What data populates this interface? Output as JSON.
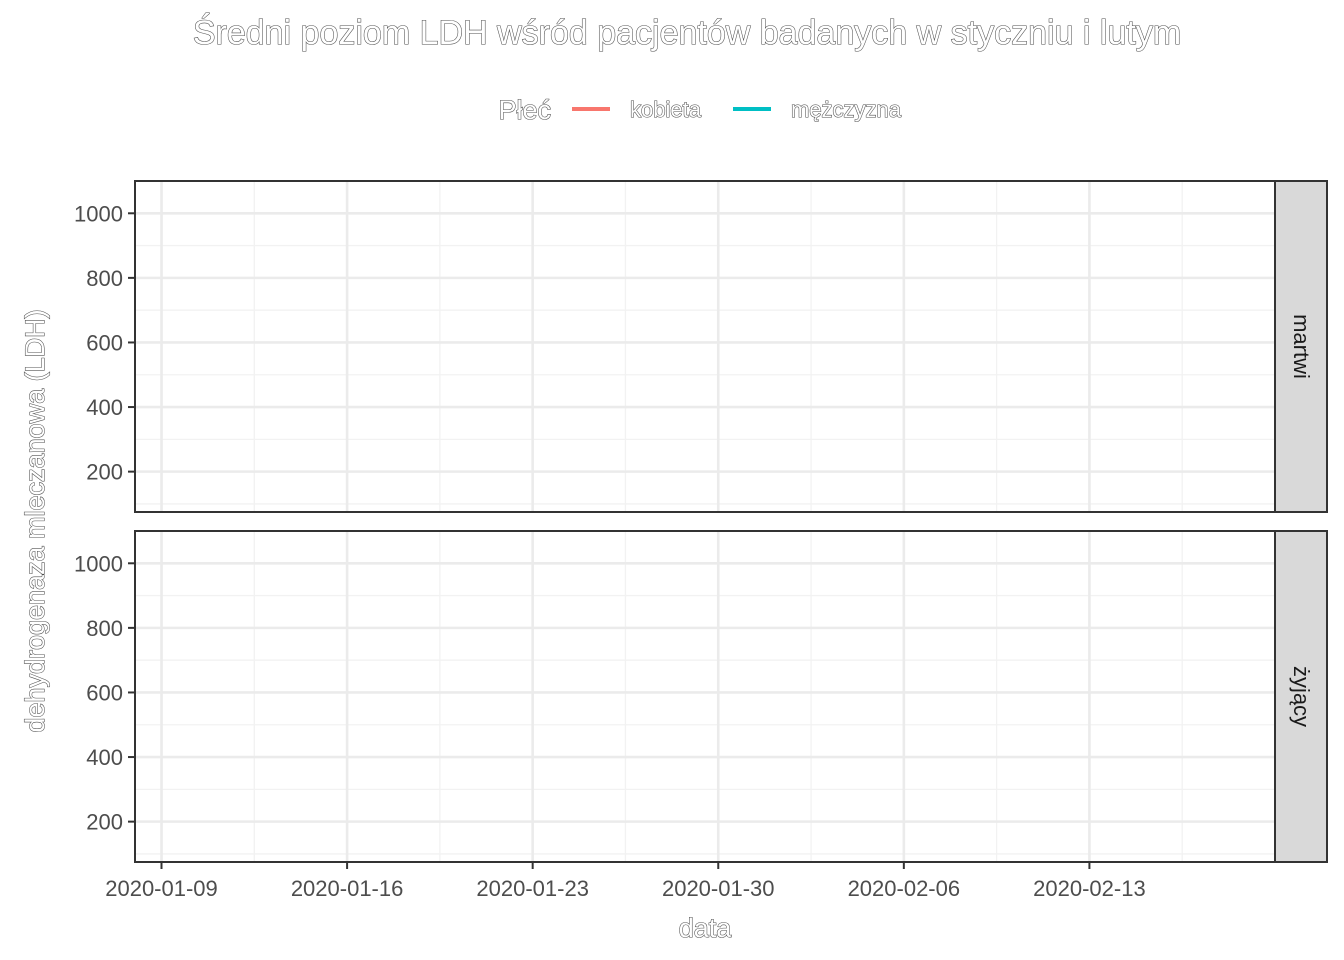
{
  "chart_data": {
    "type": "line",
    "title": "Średni poziom LDH wśród pacjentów badanych w styczniu i lutym",
    "xlabel": "data",
    "ylabel": "dehydrogenaza mleczanowa (LDH)",
    "x_type": "date",
    "xlim": [
      "2020-01-08",
      "2020-02-20"
    ],
    "ylim": [
      75,
      1100
    ],
    "x_ticks": [
      "2020-01-09",
      "2020-01-16",
      "2020-01-23",
      "2020-01-30",
      "2020-02-06",
      "2020-02-13"
    ],
    "y_ticks": [
      200,
      400,
      600,
      800,
      1000
    ],
    "grid": true,
    "legend": {
      "title": "Płeć",
      "position": "top",
      "entries": [
        {
          "label": "kobieta",
          "color": "#F8766D"
        },
        {
          "label": "mężczyzna",
          "color": "#00BFC4"
        }
      ]
    },
    "facets": [
      {
        "label": "martwi",
        "series": [
          {
            "name": "kobieta",
            "points": []
          },
          {
            "name": "mężczyzna",
            "points": []
          }
        ]
      },
      {
        "label": "żyjący",
        "series": [
          {
            "name": "kobieta",
            "points": []
          },
          {
            "name": "mężczyzna",
            "points": []
          }
        ]
      }
    ]
  }
}
